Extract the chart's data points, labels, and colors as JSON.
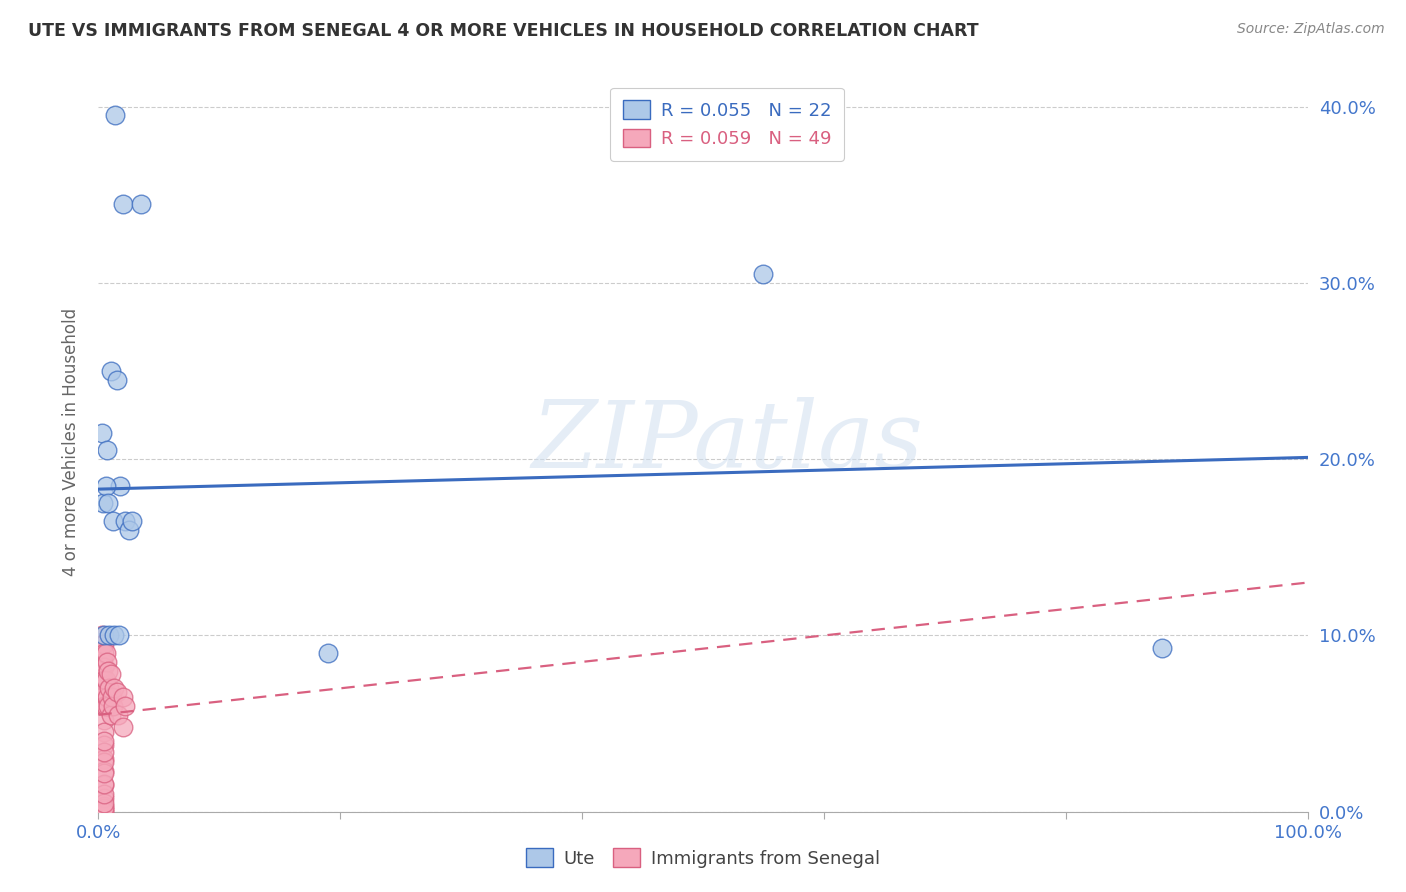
{
  "title": "UTE VS IMMIGRANTS FROM SENEGAL 4 OR MORE VEHICLES IN HOUSEHOLD CORRELATION CHART",
  "source": "Source: ZipAtlas.com",
  "ylabel": "4 or more Vehicles in Household",
  "watermark": "ZIPatlas",
  "xlim": [
    0.0,
    1.0
  ],
  "ylim": [
    0.0,
    0.42
  ],
  "yticks": [
    0.0,
    0.1,
    0.2,
    0.3,
    0.4
  ],
  "xticks": [
    0.0,
    0.2,
    0.4,
    0.6,
    0.8,
    1.0
  ],
  "ute_R": 0.055,
  "ute_N": 22,
  "senegal_R": 0.059,
  "senegal_N": 49,
  "ute_color": "#adc8e8",
  "senegal_color": "#f5a8bb",
  "ute_line_color": "#3a6bbf",
  "senegal_line_color": "#d96080",
  "legend_ute_label": "Ute",
  "legend_senegal_label": "Immigrants from Senegal",
  "ute_x": [
    0.014,
    0.02,
    0.035,
    0.003,
    0.007,
    0.01,
    0.015,
    0.018,
    0.004,
    0.006,
    0.008,
    0.012,
    0.022,
    0.025,
    0.028,
    0.005,
    0.009,
    0.013,
    0.017,
    0.55,
    0.88,
    0.19
  ],
  "ute_y": [
    0.395,
    0.345,
    0.345,
    0.215,
    0.205,
    0.25,
    0.245,
    0.185,
    0.175,
    0.185,
    0.175,
    0.165,
    0.165,
    0.16,
    0.165,
    0.1,
    0.1,
    0.1,
    0.1,
    0.305,
    0.093,
    0.09
  ],
  "senegal_x": [
    0.003,
    0.003,
    0.003,
    0.004,
    0.004,
    0.004,
    0.004,
    0.005,
    0.005,
    0.005,
    0.005,
    0.005,
    0.005,
    0.005,
    0.005,
    0.005,
    0.005,
    0.005,
    0.005,
    0.005,
    0.005,
    0.005,
    0.005,
    0.005,
    0.005,
    0.005,
    0.005,
    0.005,
    0.005,
    0.005,
    0.005,
    0.006,
    0.006,
    0.006,
    0.007,
    0.007,
    0.008,
    0.008,
    0.009,
    0.01,
    0.01,
    0.011,
    0.012,
    0.013,
    0.015,
    0.016,
    0.02,
    0.02,
    0.022
  ],
  "senegal_y": [
    0.1,
    0.08,
    0.065,
    0.095,
    0.085,
    0.075,
    0.06,
    0.095,
    0.09,
    0.082,
    0.075,
    0.068,
    0.06,
    0.052,
    0.045,
    0.038,
    0.03,
    0.023,
    0.015,
    0.008,
    0.003,
    0.001,
    0.0,
    0.002,
    0.005,
    0.01,
    0.016,
    0.022,
    0.028,
    0.034,
    0.04,
    0.09,
    0.075,
    0.06,
    0.085,
    0.065,
    0.08,
    0.06,
    0.07,
    0.078,
    0.055,
    0.065,
    0.06,
    0.07,
    0.068,
    0.055,
    0.065,
    0.048,
    0.06
  ],
  "ute_slope": 0.018,
  "ute_intercept": 0.183,
  "senegal_slope": 0.075,
  "senegal_intercept": 0.055,
  "background_color": "#ffffff",
  "grid_color": "#cccccc",
  "tick_color": "#4477cc",
  "title_color": "#333333",
  "source_color": "#888888",
  "ylabel_color": "#666666"
}
